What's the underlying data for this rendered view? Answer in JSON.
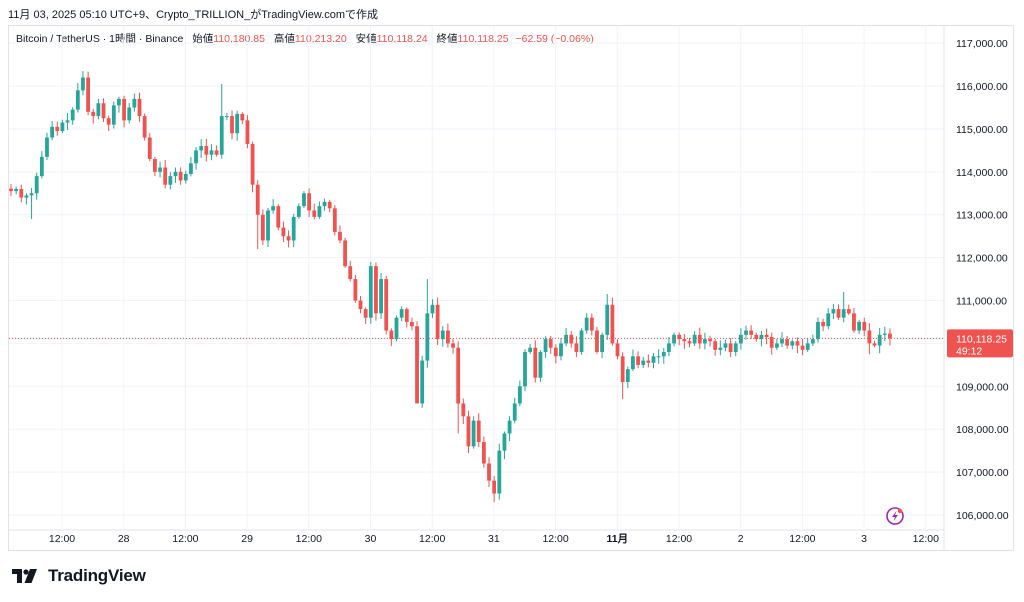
{
  "header": {
    "attribution": "11月 03, 2025 05:10 UTC+9、Crypto_TRILLION_がTradingView.comで作成",
    "symbol": "Bitcoin / TetherUS · 1時間 · Binance",
    "open_label": "始値",
    "open_value": "110,180.85",
    "high_label": "高値",
    "high_value": "110,213.20",
    "low_label": "安値",
    "low_value": "110,118.24",
    "close_label": "終値",
    "close_value": "110,118.25",
    "change_value": "−62.59 (−0.06%)"
  },
  "price_tag": {
    "price": "110,118.25",
    "countdown": "49:12",
    "color": "#ef5350"
  },
  "footer": {
    "brand": "TradingView"
  },
  "chart_data": {
    "type": "candlestick",
    "interval": "1h",
    "x_ticks": [
      "12:00",
      "28",
      "12:00",
      "29",
      "12:00",
      "30",
      "12:00",
      "31",
      "12:00",
      "11月",
      "12:00",
      "2",
      "12:00",
      "3",
      "12:00"
    ],
    "y_ticks": [
      "117,000.00",
      "116,000.00",
      "115,000.00",
      "114,000.00",
      "113,000.00",
      "112,000.00",
      "111,000.00",
      "110,000.00",
      "109,000.00",
      "108,000.00",
      "107,000.00",
      "106,000.00"
    ],
    "y_values": [
      117000,
      116000,
      115000,
      114000,
      113000,
      112000,
      111000,
      110000,
      109000,
      108000,
      107000,
      106000
    ],
    "ylim": [
      105650,
      117400
    ],
    "last_price": 110118.25,
    "up_color": "#26a69a",
    "down_color": "#ef5350",
    "close_path": [
      [
        0,
        113550
      ],
      [
        1,
        113600
      ],
      [
        2,
        113400
      ],
      [
        4,
        113500
      ],
      [
        5,
        113900
      ],
      [
        7,
        114800
      ],
      [
        8,
        115050
      ],
      [
        9,
        114950
      ],
      [
        10,
        115150
      ],
      [
        11,
        115200
      ],
      [
        12,
        115450
      ],
      [
        13,
        115900
      ],
      [
        14,
        116200
      ],
      [
        15,
        115400
      ],
      [
        16,
        115300
      ],
      [
        17,
        115600
      ],
      [
        18,
        115250
      ],
      [
        19,
        115100
      ],
      [
        20,
        115550
      ],
      [
        21,
        115700
      ],
      [
        22,
        115200
      ],
      [
        23,
        115500
      ],
      [
        24,
        115700
      ],
      [
        25,
        115300
      ],
      [
        26,
        114800
      ],
      [
        27,
        114300
      ],
      [
        28,
        114000
      ],
      [
        29,
        114100
      ],
      [
        30,
        113700
      ],
      [
        31,
        113900
      ],
      [
        32,
        114000
      ],
      [
        33,
        113800
      ],
      [
        34,
        113950
      ],
      [
        35,
        114200
      ],
      [
        36,
        114500
      ],
      [
        37,
        114600
      ],
      [
        38,
        114400
      ],
      [
        39,
        114500
      ],
      [
        40,
        114400
      ],
      [
        41,
        115300
      ],
      [
        42,
        115300
      ],
      [
        43,
        114900
      ],
      [
        44,
        115350
      ],
      [
        45,
        115200
      ],
      [
        46,
        114650
      ],
      [
        47,
        113700
      ],
      [
        48,
        113000
      ],
      [
        49,
        112400
      ],
      [
        50,
        113100
      ],
      [
        51,
        113200
      ],
      [
        52,
        112700
      ],
      [
        53,
        112500
      ],
      [
        54,
        112400
      ],
      [
        55,
        112950
      ],
      [
        56,
        113200
      ],
      [
        57,
        113500
      ],
      [
        58,
        113100
      ],
      [
        59,
        112950
      ],
      [
        60,
        113200
      ],
      [
        61,
        113300
      ],
      [
        62,
        113150
      ],
      [
        63,
        112600
      ],
      [
        64,
        112400
      ],
      [
        65,
        111800
      ],
      [
        66,
        111500
      ],
      [
        67,
        111000
      ],
      [
        68,
        110800
      ],
      [
        69,
        110600
      ],
      [
        70,
        111800
      ],
      [
        71,
        110700
      ],
      [
        72,
        111500
      ],
      [
        73,
        110300
      ],
      [
        74,
        110100
      ],
      [
        75,
        110600
      ],
      [
        76,
        110800
      ],
      [
        77,
        110500
      ],
      [
        78,
        110400
      ],
      [
        79,
        108600
      ],
      [
        80,
        109600
      ],
      [
        81,
        110700
      ],
      [
        82,
        110900
      ],
      [
        83,
        110100
      ],
      [
        84,
        110300
      ],
      [
        85,
        110000
      ],
      [
        86,
        109900
      ],
      [
        87,
        108600
      ],
      [
        88,
        108300
      ],
      [
        89,
        107600
      ],
      [
        90,
        108200
      ],
      [
        91,
        107700
      ],
      [
        92,
        107200
      ],
      [
        93,
        106800
      ],
      [
        94,
        106500
      ],
      [
        95,
        107500
      ],
      [
        96,
        107900
      ],
      [
        97,
        108200
      ],
      [
        98,
        108600
      ],
      [
        99,
        109000
      ],
      [
        100,
        109800
      ],
      [
        101,
        109900
      ],
      [
        102,
        109200
      ],
      [
        103,
        109800
      ],
      [
        104,
        110100
      ],
      [
        105,
        109900
      ],
      [
        106,
        109700
      ],
      [
        107,
        110000
      ],
      [
        108,
        110200
      ],
      [
        109,
        110000
      ],
      [
        110,
        109800
      ],
      [
        111,
        110300
      ],
      [
        112,
        110600
      ],
      [
        113,
        110300
      ],
      [
        114,
        109800
      ],
      [
        115,
        110200
      ],
      [
        116,
        110900
      ],
      [
        117,
        110000
      ],
      [
        118,
        109700
      ],
      [
        119,
        109100
      ],
      [
        120,
        109400
      ],
      [
        121,
        109700
      ],
      [
        122,
        109500
      ],
      [
        123,
        109600
      ],
      [
        124,
        109550
      ],
      [
        125,
        109700
      ],
      [
        126,
        109700
      ],
      [
        127,
        109800
      ],
      [
        128,
        110000
      ],
      [
        129,
        110200
      ],
      [
        130,
        110100
      ],
      [
        131,
        110050
      ],
      [
        132,
        110000
      ],
      [
        133,
        110200
      ],
      [
        134,
        110000
      ],
      [
        135,
        110100
      ],
      [
        136,
        110050
      ],
      [
        137,
        109850
      ],
      [
        138,
        109900
      ],
      [
        139,
        110000
      ],
      [
        140,
        109800
      ],
      [
        141,
        110000
      ],
      [
        142,
        110200
      ],
      [
        143,
        110300
      ],
      [
        144,
        110200
      ],
      [
        145,
        110100
      ],
      [
        146,
        110200
      ],
      [
        147,
        110150
      ],
      [
        148,
        109900
      ],
      [
        149,
        110000
      ],
      [
        150,
        110100
      ],
      [
        151,
        109950
      ],
      [
        152,
        110050
      ],
      [
        153,
        109950
      ],
      [
        154,
        109850
      ],
      [
        155,
        110000
      ],
      [
        156,
        110100
      ],
      [
        157,
        110500
      ],
      [
        158,
        110400
      ],
      [
        159,
        110700
      ],
      [
        160,
        110800
      ],
      [
        161,
        110600
      ],
      [
        162,
        110800
      ],
      [
        163,
        110700
      ],
      [
        164,
        110300
      ],
      [
        165,
        110500
      ],
      [
        166,
        110300
      ],
      [
        167,
        110000
      ],
      [
        168,
        109950
      ],
      [
        169,
        110200
      ],
      [
        170,
        110230
      ],
      [
        171,
        110118
      ]
    ],
    "wick_extremes": [
      [
        4,
        112900
      ],
      [
        14,
        116350
      ],
      [
        41,
        116050
      ],
      [
        48,
        112200
      ],
      [
        79,
        109200
      ],
      [
        81,
        111500
      ],
      [
        87,
        107900
      ],
      [
        94,
        106300
      ],
      [
        96,
        107300
      ],
      [
        116,
        111150
      ],
      [
        119,
        108700
      ],
      [
        162,
        111200
      ],
      [
        167,
        109750
      ]
    ]
  }
}
